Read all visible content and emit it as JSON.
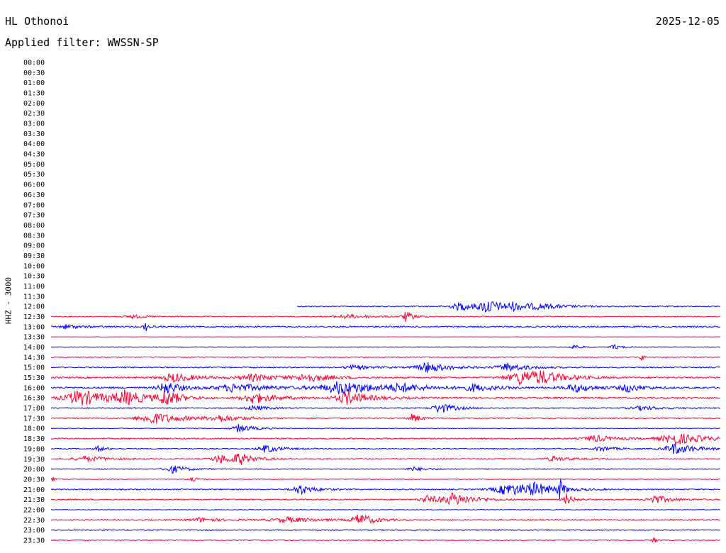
{
  "header": {
    "station": "HL Othonoi",
    "date": "2025-12-05",
    "filter": "Applied filter: WWSSN-SP"
  },
  "chart_data": {
    "type": "line",
    "title": "HL Othonoi",
    "ylabel": "HHZ - 3000",
    "colors": [
      "#0000ff",
      "#ff0033"
    ],
    "rows": [
      {
        "label": "00:00",
        "events": []
      },
      {
        "label": "00:30",
        "events": []
      },
      {
        "label": "01:00",
        "events": []
      },
      {
        "label": "01:30",
        "events": []
      },
      {
        "label": "02:00",
        "events": []
      },
      {
        "label": "02:30",
        "events": []
      },
      {
        "label": "03:00",
        "events": []
      },
      {
        "label": "03:30",
        "events": []
      },
      {
        "label": "04:00",
        "events": []
      },
      {
        "label": "04:30",
        "events": []
      },
      {
        "label": "05:00",
        "events": []
      },
      {
        "label": "05:30",
        "events": []
      },
      {
        "label": "06:00",
        "events": []
      },
      {
        "label": "06:30",
        "events": []
      },
      {
        "label": "07:00",
        "events": []
      },
      {
        "label": "07:30",
        "events": []
      },
      {
        "label": "08:00",
        "events": []
      },
      {
        "label": "08:30",
        "events": []
      },
      {
        "label": "09:00",
        "events": []
      },
      {
        "label": "09:30",
        "events": []
      },
      {
        "label": "10:00",
        "events": []
      },
      {
        "label": "10:30",
        "events": []
      },
      {
        "label": "11:00",
        "events": []
      },
      {
        "label": "11:30",
        "events": []
      },
      {
        "label": "12:00",
        "start": 0.367,
        "noise": 1.2,
        "events": [
          [
            0.61,
            6,
            0.03
          ],
          [
            0.65,
            10,
            0.02
          ],
          [
            0.69,
            5,
            0.03
          ],
          [
            0.73,
            3,
            0.04
          ]
        ]
      },
      {
        "label": "12:30",
        "noise": 1,
        "events": [
          [
            0.12,
            3,
            0.02
          ],
          [
            0.44,
            3,
            0.04
          ],
          [
            0.53,
            8,
            0.01
          ]
        ]
      },
      {
        "label": "13:00",
        "noise": 1.6,
        "events": [
          [
            0.02,
            3,
            0.02
          ],
          [
            0.14,
            8,
            0.005
          ]
        ]
      },
      {
        "label": "13:30",
        "noise": 0.5,
        "events": []
      },
      {
        "label": "14:00",
        "noise": 0.8,
        "events": [
          [
            0.78,
            4,
            0.01
          ],
          [
            0.84,
            4,
            0.01
          ]
        ]
      },
      {
        "label": "14:30",
        "noise": 1,
        "events": [
          [
            0.88,
            14,
            0.003
          ]
        ]
      },
      {
        "label": "15:00",
        "noise": 1.3,
        "events": [
          [
            0.45,
            3,
            0.03
          ],
          [
            0.56,
            8,
            0.03
          ],
          [
            0.68,
            6,
            0.03
          ]
        ]
      },
      {
        "label": "15:30",
        "noise": 1.8,
        "events": [
          [
            0.18,
            7,
            0.03
          ],
          [
            0.3,
            5,
            0.04
          ],
          [
            0.38,
            6,
            0.03
          ],
          [
            0.7,
            10,
            0.04
          ],
          [
            0.73,
            6,
            0.03
          ]
        ]
      },
      {
        "label": "16:00",
        "noise": 2,
        "events": [
          [
            0.17,
            10,
            0.02
          ],
          [
            0.27,
            6,
            0.05
          ],
          [
            0.43,
            9,
            0.06
          ],
          [
            0.52,
            5,
            0.03
          ],
          [
            0.63,
            5,
            0.03
          ],
          [
            0.78,
            6,
            0.03
          ],
          [
            0.86,
            6,
            0.02
          ]
        ]
      },
      {
        "label": "16:30",
        "noise": 2,
        "events": [
          [
            0.04,
            12,
            0.04
          ],
          [
            0.11,
            9,
            0.03
          ],
          [
            0.17,
            11,
            0.02
          ],
          [
            0.3,
            8,
            0.03
          ],
          [
            0.44,
            10,
            0.03
          ]
        ]
      },
      {
        "label": "17:00",
        "noise": 1.2,
        "events": [
          [
            0.3,
            4,
            0.02
          ],
          [
            0.58,
            8,
            0.02
          ],
          [
            0.88,
            3,
            0.03
          ]
        ]
      },
      {
        "label": "17:30",
        "noise": 1.2,
        "events": [
          [
            0.15,
            9,
            0.04
          ],
          [
            0.25,
            5,
            0.03
          ],
          [
            0.54,
            8,
            0.01
          ]
        ]
      },
      {
        "label": "18:00",
        "noise": 0.8,
        "events": [
          [
            0.28,
            6,
            0.02
          ]
        ]
      },
      {
        "label": "18:30",
        "noise": 1.5,
        "events": [
          [
            0.81,
            5,
            0.03
          ],
          [
            0.93,
            9,
            0.04
          ]
        ]
      },
      {
        "label": "19:00",
        "noise": 1.2,
        "events": [
          [
            0.07,
            4,
            0.01
          ],
          [
            0.32,
            6,
            0.02
          ],
          [
            0.82,
            4,
            0.02
          ],
          [
            0.93,
            8,
            0.03
          ]
        ]
      },
      {
        "label": "19:30",
        "noise": 1.3,
        "events": [
          [
            0.05,
            4,
            0.03
          ],
          [
            0.25,
            7,
            0.02
          ],
          [
            0.28,
            8,
            0.02
          ],
          [
            0.75,
            4,
            0.02
          ]
        ]
      },
      {
        "label": "20:00",
        "noise": 1,
        "events": [
          [
            0.18,
            6,
            0.02
          ],
          [
            0.54,
            3,
            0.02
          ]
        ]
      },
      {
        "label": "20:30",
        "noise": 0.8,
        "events": [
          [
            0.0,
            8,
            0.004
          ],
          [
            0.21,
            3,
            0.01
          ]
        ]
      },
      {
        "label": "21:00",
        "noise": 1.3,
        "events": [
          [
            0.37,
            8,
            0.02
          ],
          [
            0.68,
            9,
            0.04
          ],
          [
            0.72,
            7,
            0.03
          ],
          [
            0.76,
            14,
            0.005
          ]
        ]
      },
      {
        "label": "21:30",
        "noise": 1.4,
        "events": [
          [
            0.56,
            6,
            0.02
          ],
          [
            0.6,
            9,
            0.03
          ],
          [
            0.77,
            8,
            0.01
          ],
          [
            0.9,
            7,
            0.02
          ]
        ]
      },
      {
        "label": "22:00",
        "noise": 0.8,
        "events": []
      },
      {
        "label": "22:30",
        "noise": 1.4,
        "events": [
          [
            0.22,
            3,
            0.03
          ],
          [
            0.35,
            4,
            0.04
          ],
          [
            0.46,
            9,
            0.02
          ]
        ]
      },
      {
        "label": "23:00",
        "noise": 1.2,
        "events": []
      },
      {
        "label": "23:30",
        "noise": 1,
        "events": [
          [
            0.9,
            6,
            0.004
          ]
        ]
      }
    ]
  }
}
